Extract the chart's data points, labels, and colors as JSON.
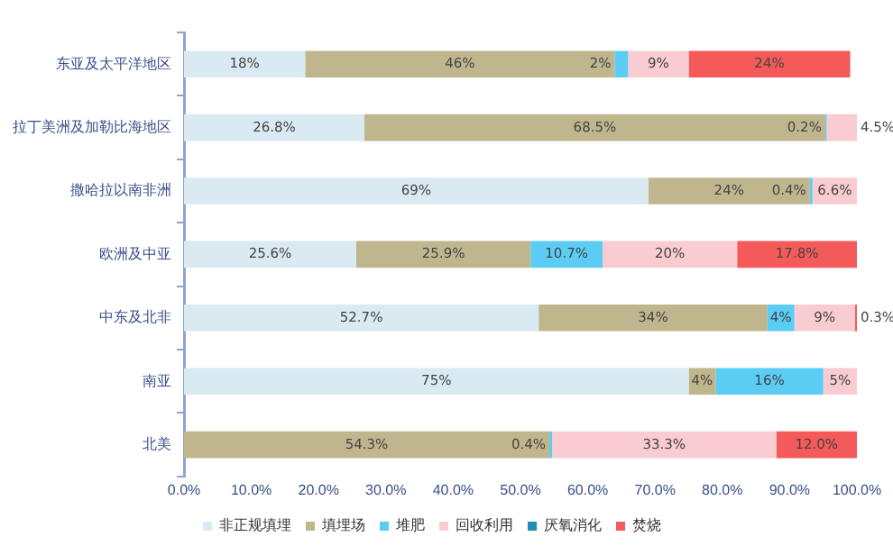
{
  "chart_data": {
    "type": "bar",
    "orientation": "horizontal",
    "stacked": true,
    "categories": [
      "东亚及太平洋地区",
      "拉丁美洲及加勒比海地区",
      "撒哈拉以南非洲",
      "欧洲及中亚",
      "中东及北非",
      "南亚",
      "北美"
    ],
    "series": [
      {
        "name": "非正规填埋",
        "color": "#d9eaf2",
        "values": [
          18,
          26.8,
          69,
          25.6,
          52.7,
          75,
          null
        ],
        "value_labels": [
          "18%",
          "26.8%",
          "69%",
          "25.6%",
          "52.7%",
          "75%",
          null
        ]
      },
      {
        "name": "填埋场",
        "color": "#c0b68e",
        "values": [
          46,
          68.5,
          24,
          25.9,
          34,
          4,
          54.3
        ],
        "value_labels": [
          "46%",
          "68.5%",
          "24%",
          "25.9%",
          "34%",
          "4%",
          "54.3%"
        ]
      },
      {
        "name": "堆肥",
        "color": "#5bcdf5",
        "values": [
          2,
          0.2,
          0.4,
          10.7,
          4,
          16,
          0.4
        ],
        "value_labels": [
          "2%",
          "0.2%",
          "0.4%",
          "10.7%",
          "4%",
          "16%",
          "0.4%"
        ]
      },
      {
        "name": "回收利用",
        "color": "#f8ccd0",
        "values": [
          9,
          4.5,
          6.6,
          20,
          9,
          5,
          33.3
        ],
        "value_labels": [
          "9%",
          "4.5%",
          "6.6%",
          "20%",
          "9%",
          "5%",
          "33.3%"
        ]
      },
      {
        "name": "厌氧消化",
        "color": "#1f8fb8",
        "values": [
          null,
          null,
          null,
          null,
          null,
          null,
          null
        ]
      },
      {
        "name": "焚烧",
        "color": "#f55a5a",
        "values": [
          24,
          null,
          null,
          17.8,
          0.3,
          null,
          12
        ],
        "value_labels": [
          "24%",
          null,
          null,
          "17.8%",
          "0.3%",
          null,
          "12.0%"
        ]
      }
    ],
    "xlim": [
      0,
      100
    ],
    "xticks": [
      {
        "value": 0,
        "label": "0.0%"
      },
      {
        "value": 10,
        "label": "10.0%"
      },
      {
        "value": 20,
        "label": "20.0%"
      },
      {
        "value": 30,
        "label": "30.0%"
      },
      {
        "value": 40,
        "label": "40.0%"
      },
      {
        "value": 50,
        "label": "50.0%"
      },
      {
        "value": 60,
        "label": "60.0%"
      },
      {
        "value": 70,
        "label": "70.0%"
      },
      {
        "value": 80,
        "label": "80.0%"
      },
      {
        "value": 90,
        "label": "90.0%"
      },
      {
        "value": 100,
        "label": "100.0%"
      }
    ],
    "grid": false,
    "legend": "bottom"
  }
}
